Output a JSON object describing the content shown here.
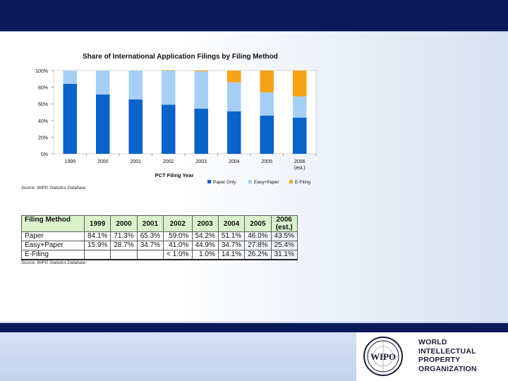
{
  "chart_data": {
    "type": "bar",
    "stacked": true,
    "title": "Share of International Application Filings by Filing Method",
    "xlabel": "PCT Filing Year",
    "ylabel": "",
    "categories": [
      "1999",
      "2000",
      "2001",
      "2002",
      "2003",
      "2004",
      "2005",
      "2006"
    ],
    "category_notes": [
      "",
      "",
      "",
      "",
      "",
      "",
      "",
      "(est.)"
    ],
    "yticks": [
      "0%",
      "20%",
      "40%",
      "60%",
      "80%",
      "100%"
    ],
    "ylim": [
      0,
      100
    ],
    "series": [
      {
        "name": "Paper Only",
        "color": "#0a63c9",
        "values": [
          84.1,
          71.3,
          65.3,
          59.0,
          54.2,
          51.1,
          46.0,
          43.5
        ]
      },
      {
        "name": "Easy+Paper",
        "color": "#a6cff5",
        "values": [
          15.9,
          28.7,
          34.7,
          41.0,
          44.9,
          34.7,
          27.8,
          25.4
        ]
      },
      {
        "name": "E-Filing",
        "color": "#f5a318",
        "values": [
          0,
          0,
          0,
          0.5,
          1.0,
          14.1,
          26.2,
          31.1
        ]
      }
    ],
    "legend_position": "bottom",
    "grid": false,
    "source": "Source: WIPO Statistics Database"
  },
  "table": {
    "header_label": "Filing Method",
    "years": [
      "1999",
      "2000",
      "2001",
      "2002",
      "2003",
      "2004",
      "2005",
      "2006"
    ],
    "last_year_note": "(est.)",
    "rows": [
      {
        "label": "Paper",
        "cells": [
          "84.1%",
          "71.3%",
          "65.3%",
          "59.0%",
          "54.2%",
          "51.1%",
          "46.0%",
          "43.5%"
        ]
      },
      {
        "label": "Easy+Paper",
        "cells": [
          "15.9%",
          "28.7%",
          "34.7%",
          "41.0%",
          "44.9%",
          "34.7%",
          "27.8%",
          "25.4%"
        ]
      },
      {
        "label": "E-Filing",
        "cells": [
          "",
          "",
          "",
          "< 1.0%",
          "1.0%",
          "14.1%",
          "26.2%",
          "31.1%"
        ]
      }
    ],
    "source": "Source: WIPO Statistics Database"
  },
  "logo": {
    "emblem_text": "WIPO",
    "lines": [
      "WORLD",
      "INTELLECTUAL",
      "PROPERTY",
      "ORGANIZATION"
    ]
  }
}
